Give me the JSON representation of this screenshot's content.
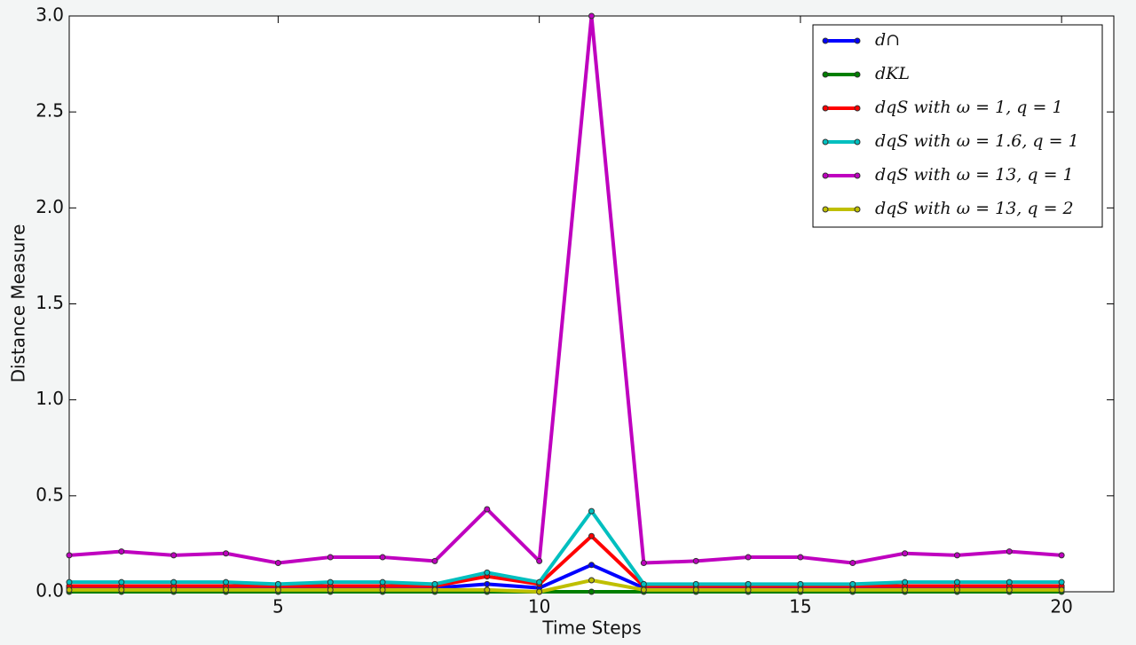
{
  "chart_data": {
    "type": "line",
    "xlabel": "Time Steps",
    "ylabel": "Distance Measure",
    "x": [
      1,
      2,
      3,
      4,
      5,
      6,
      7,
      8,
      9,
      10,
      11,
      12,
      13,
      14,
      15,
      16,
      17,
      18,
      19,
      20
    ],
    "xlim": [
      1,
      21
    ],
    "xticks": [
      5,
      10,
      15,
      20
    ],
    "ylim": [
      0,
      3
    ],
    "yticks": [
      {
        "value": 0,
        "label": "0.0"
      },
      0.5,
      {
        "value": 1,
        "label": "1.0"
      },
      1.5,
      {
        "value": 2,
        "label": "2.0"
      },
      2.5,
      {
        "value": 3,
        "label": "3.0"
      }
    ],
    "grid": false,
    "legend": "upper right",
    "series": [
      {
        "name": "d∩",
        "color": "#0000ff",
        "values": [
          0.02,
          0.02,
          0.02,
          0.02,
          0.02,
          0.02,
          0.02,
          0.02,
          0.04,
          0.02,
          0.14,
          0.02,
          0.02,
          0.02,
          0.02,
          0.02,
          0.02,
          0.02,
          0.02,
          0.02
        ]
      },
      {
        "name": "dKL",
        "color": "#007f00",
        "values": [
          0,
          0,
          0,
          0,
          0,
          0,
          0,
          0,
          0,
          0,
          0,
          0,
          0,
          0,
          0,
          0,
          0,
          0,
          0,
          0
        ]
      },
      {
        "name": "dqS with ω = 1, q = 1",
        "color": "#ff0000",
        "values": [
          0.03,
          0.03,
          0.03,
          0.03,
          0.03,
          0.03,
          0.03,
          0.03,
          0.08,
          0.04,
          0.29,
          0.03,
          0.03,
          0.03,
          0.03,
          0.03,
          0.03,
          0.03,
          0.03,
          0.03
        ]
      },
      {
        "name": "dqS with ω = 1.6, q = 1",
        "color": "#00bfbf",
        "values": [
          0.05,
          0.05,
          0.05,
          0.05,
          0.04,
          0.05,
          0.05,
          0.04,
          0.1,
          0.05,
          0.42,
          0.04,
          0.04,
          0.04,
          0.04,
          0.04,
          0.05,
          0.05,
          0.05,
          0.05
        ]
      },
      {
        "name": "dqS with ω = 13, q = 1",
        "color": "#bf00bf",
        "values": [
          0.19,
          0.21,
          0.19,
          0.2,
          0.15,
          0.18,
          0.18,
          0.16,
          0.43,
          0.16,
          3.0,
          0.15,
          0.16,
          0.18,
          0.18,
          0.15,
          0.2,
          0.19,
          0.21,
          0.19
        ]
      },
      {
        "name": "dqS with ω = 13, q = 2",
        "color": "#bfbf00",
        "values": [
          0.01,
          0.01,
          0.01,
          0.01,
          0.01,
          0.01,
          0.01,
          0.01,
          0.01,
          0,
          0.06,
          0.01,
          0.01,
          0.01,
          0.01,
          0.01,
          0.01,
          0.01,
          0.01,
          0.01
        ]
      }
    ]
  }
}
